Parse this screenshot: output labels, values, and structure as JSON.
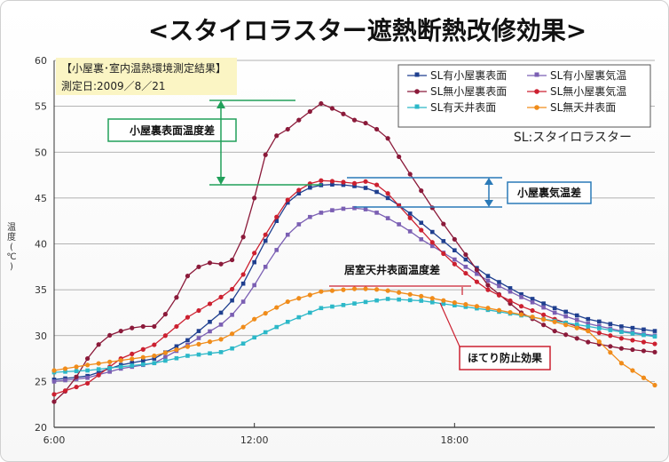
{
  "chart_data": {
    "type": "line",
    "title": "<スタイロラスター遮熱断熱改修効果>",
    "info_lines": [
      "【小屋裏･室内温熱環境測定結果】",
      "測定日:2009／8／21"
    ],
    "ylabel_chars": [
      "温",
      "度",
      "(",
      "℃",
      ")"
    ],
    "ylim": [
      20,
      60
    ],
    "yticks": [
      "20",
      "25",
      "30",
      "35",
      "40",
      "45",
      "50",
      "55",
      "60"
    ],
    "x_hours": [
      6,
      24
    ],
    "xticks": [
      {
        "h": 6,
        "label": "6:00"
      },
      {
        "h": 12,
        "label": "12:00"
      },
      {
        "h": 18,
        "label": "18:00"
      }
    ],
    "grid": true,
    "legend_position": "top-right",
    "legend_note": "SL:スタイロラスター",
    "annotations": {
      "attic_surface": "小屋裏表面温度差",
      "attic_air": "小屋裏気温差",
      "ceiling": "居室天井表面温度差",
      "effect": "ほてり防止効果"
    },
    "series": [
      {
        "name": "SL有小屋裏表面",
        "color": "#1f3f8f",
        "marker": "square",
        "points": [
          [
            6,
            25.2
          ],
          [
            7,
            25.6
          ],
          [
            8,
            26.8
          ],
          [
            9,
            27.5
          ],
          [
            10,
            29.5
          ],
          [
            11,
            32.5
          ],
          [
            11.5,
            34.5
          ],
          [
            12,
            38
          ],
          [
            12.5,
            41.5
          ],
          [
            13,
            44.5
          ],
          [
            13.5,
            46
          ],
          [
            14,
            46.4
          ],
          [
            14.5,
            46.5
          ],
          [
            15,
            46.3
          ],
          [
            15.5,
            46
          ],
          [
            16,
            45
          ],
          [
            16.5,
            43.8
          ],
          [
            17,
            42.3
          ],
          [
            17.5,
            40.8
          ],
          [
            18,
            39.3
          ],
          [
            18.5,
            37.8
          ],
          [
            19,
            36.5
          ],
          [
            20,
            34.5
          ],
          [
            21,
            33
          ],
          [
            22,
            31.8
          ],
          [
            23,
            31
          ],
          [
            24,
            30.5
          ]
        ]
      },
      {
        "name": "SL有小屋裏気温",
        "color": "#7b5fb3",
        "marker": "square",
        "points": [
          [
            6,
            25
          ],
          [
            7,
            25.4
          ],
          [
            8,
            26.4
          ],
          [
            9,
            27
          ],
          [
            10,
            29
          ],
          [
            11,
            31.2
          ],
          [
            11.5,
            32.8
          ],
          [
            12,
            35.5
          ],
          [
            12.5,
            38.5
          ],
          [
            13,
            41
          ],
          [
            13.5,
            42.7
          ],
          [
            14,
            43.4
          ],
          [
            14.5,
            43.8
          ],
          [
            15,
            43.9
          ],
          [
            15.5,
            43.7
          ],
          [
            16,
            42.8
          ],
          [
            16.5,
            41.8
          ],
          [
            17,
            40.5
          ],
          [
            17.5,
            39.4
          ],
          [
            18,
            38.3
          ],
          [
            18.5,
            37.1
          ],
          [
            19,
            36
          ],
          [
            20,
            34.2
          ],
          [
            21,
            32.5
          ],
          [
            22,
            31.3
          ],
          [
            23,
            30.5
          ],
          [
            24,
            30
          ]
        ]
      },
      {
        "name": "SL無小屋裏表面",
        "color": "#8b1a3a",
        "marker": "circle",
        "points": [
          [
            6,
            22.8
          ],
          [
            6.5,
            24.5
          ],
          [
            7,
            27.5
          ],
          [
            7.5,
            29.8
          ],
          [
            8,
            30.5
          ],
          [
            8.5,
            31
          ],
          [
            9,
            31
          ],
          [
            9.5,
            33
          ],
          [
            10,
            36.5
          ],
          [
            10.5,
            38
          ],
          [
            11,
            37.8
          ],
          [
            11.3,
            38
          ],
          [
            11.7,
            41
          ],
          [
            12,
            45
          ],
          [
            12.3,
            49.5
          ],
          [
            12.7,
            52
          ],
          [
            13,
            52.5
          ],
          [
            13.5,
            54
          ],
          [
            14,
            55.3
          ],
          [
            14.5,
            54.5
          ],
          [
            15,
            53.5
          ],
          [
            15.5,
            53
          ],
          [
            16,
            51.5
          ],
          [
            16.5,
            48.5
          ],
          [
            17,
            45.8
          ],
          [
            17.5,
            43
          ],
          [
            18,
            40.5
          ],
          [
            18.5,
            38
          ],
          [
            19,
            35.5
          ],
          [
            20,
            32.5
          ],
          [
            21,
            30.5
          ],
          [
            22,
            29.3
          ],
          [
            23,
            28.6
          ],
          [
            24,
            28.2
          ]
        ]
      },
      {
        "name": "SL無小屋裏気温",
        "color": "#cc2030",
        "marker": "circle",
        "points": [
          [
            6,
            23.6
          ],
          [
            7,
            24.8
          ],
          [
            8,
            27.5
          ],
          [
            9,
            29
          ],
          [
            10,
            32
          ],
          [
            11,
            34.2
          ],
          [
            11.5,
            35.5
          ],
          [
            12,
            39
          ],
          [
            12.5,
            42
          ],
          [
            13,
            44.8
          ],
          [
            13.5,
            46.4
          ],
          [
            14,
            46.9
          ],
          [
            14.5,
            46.8
          ],
          [
            15,
            46.6
          ],
          [
            15.5,
            46.9
          ],
          [
            16,
            45.5
          ],
          [
            16.5,
            43.5
          ],
          [
            17,
            41.5
          ],
          [
            17.5,
            39.5
          ],
          [
            18,
            37.8
          ],
          [
            18.5,
            36.3
          ],
          [
            19,
            35
          ],
          [
            20,
            33.2
          ],
          [
            21,
            31.8
          ],
          [
            22,
            30.6
          ],
          [
            23,
            29.7
          ],
          [
            24,
            29.1
          ]
        ]
      },
      {
        "name": "SL有天井表面",
        "color": "#2cb8c8",
        "marker": "square",
        "points": [
          [
            6,
            26
          ],
          [
            7,
            26.2
          ],
          [
            8,
            26.6
          ],
          [
            9,
            27
          ],
          [
            10,
            27.8
          ],
          [
            11,
            28.2
          ],
          [
            11.5,
            28.8
          ],
          [
            12,
            29.8
          ],
          [
            13,
            31.5
          ],
          [
            14,
            33
          ],
          [
            15,
            33.5
          ],
          [
            16,
            34
          ],
          [
            17,
            33.8
          ],
          [
            18,
            33.3
          ],
          [
            19,
            32.8
          ],
          [
            20,
            32.2
          ],
          [
            21,
            31.6
          ],
          [
            22,
            31
          ],
          [
            23,
            30.4
          ],
          [
            24,
            29.9
          ]
        ]
      },
      {
        "name": "SL無天井表面",
        "color": "#f08c1a",
        "marker": "circle",
        "points": [
          [
            6,
            26.2
          ],
          [
            7,
            26.8
          ],
          [
            8,
            27.3
          ],
          [
            9,
            27.8
          ],
          [
            10,
            28.8
          ],
          [
            11,
            29.6
          ],
          [
            11.5,
            30.5
          ],
          [
            12,
            31.8
          ],
          [
            13,
            33.7
          ],
          [
            14,
            34.8
          ],
          [
            15,
            35.1
          ],
          [
            15.5,
            35.1
          ],
          [
            16,
            34.9
          ],
          [
            17,
            34.3
          ],
          [
            18,
            33.6
          ],
          [
            19,
            33
          ],
          [
            20,
            32.3
          ],
          [
            21,
            31.5
          ],
          [
            22,
            30.5
          ],
          [
            23,
            27
          ],
          [
            24,
            24.6
          ]
        ]
      }
    ]
  }
}
